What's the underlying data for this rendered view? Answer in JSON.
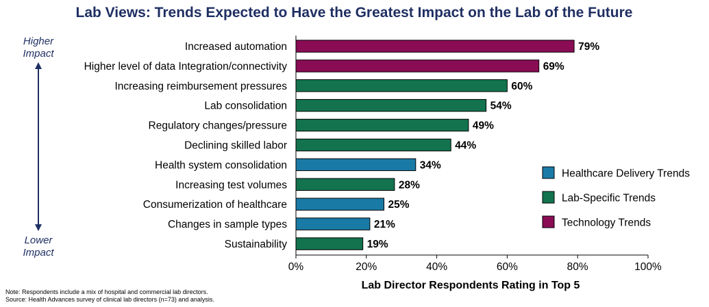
{
  "chart_data": {
    "type": "bar",
    "orientation": "horizontal",
    "title": "Lab Views: Trends Expected to Have the Greatest Impact on the Lab of the Future",
    "xlabel": "Lab Director Respondents Rating in Top 5",
    "xlim": [
      0,
      100
    ],
    "xticks": [
      "0%",
      "20%",
      "40%",
      "60%",
      "80%",
      "100%"
    ],
    "value_suffix": "%",
    "categories": [
      "Increased automation",
      "Higher level of data Integration/connectivity",
      "Increasing reimbursement pressures",
      "Lab consolidation",
      "Regulatory changes/pressure",
      "Declining skilled labor",
      "Health system consolidation",
      "Increasing test volumes",
      "Consumerization of healthcare",
      "Changes in sample types",
      "Sustainability"
    ],
    "values": [
      79,
      69,
      60,
      54,
      49,
      44,
      34,
      28,
      25,
      21,
      19
    ],
    "groups": [
      "tech",
      "tech",
      "lab",
      "lab",
      "lab",
      "lab",
      "delivery",
      "lab",
      "delivery",
      "delivery",
      "lab"
    ],
    "legend": [
      {
        "key": "delivery",
        "label": "Healthcare Delivery Trends",
        "color": "#1a7aa6"
      },
      {
        "key": "lab",
        "label": "Lab-Specific Trends",
        "color": "#13734f"
      },
      {
        "key": "tech",
        "label": "Technology Trends",
        "color": "#8a0c55"
      }
    ],
    "legend_position": "right",
    "grid": false
  },
  "side_labels": {
    "top_line1": "Higher",
    "top_line2": "Impact",
    "bottom_line1": "Lower",
    "bottom_line2": "Impact"
  },
  "notes": {
    "note": "Note:  Respondents include a mix of hospital and commercial lab directors.",
    "source": "Source:  Health Advances survey of clinical lab directors (n=73) and analysis."
  },
  "colors": {
    "title": "#1f2f63",
    "side_text": "#1f2f63",
    "axis": "#000000",
    "bar_stroke": "#000000"
  }
}
